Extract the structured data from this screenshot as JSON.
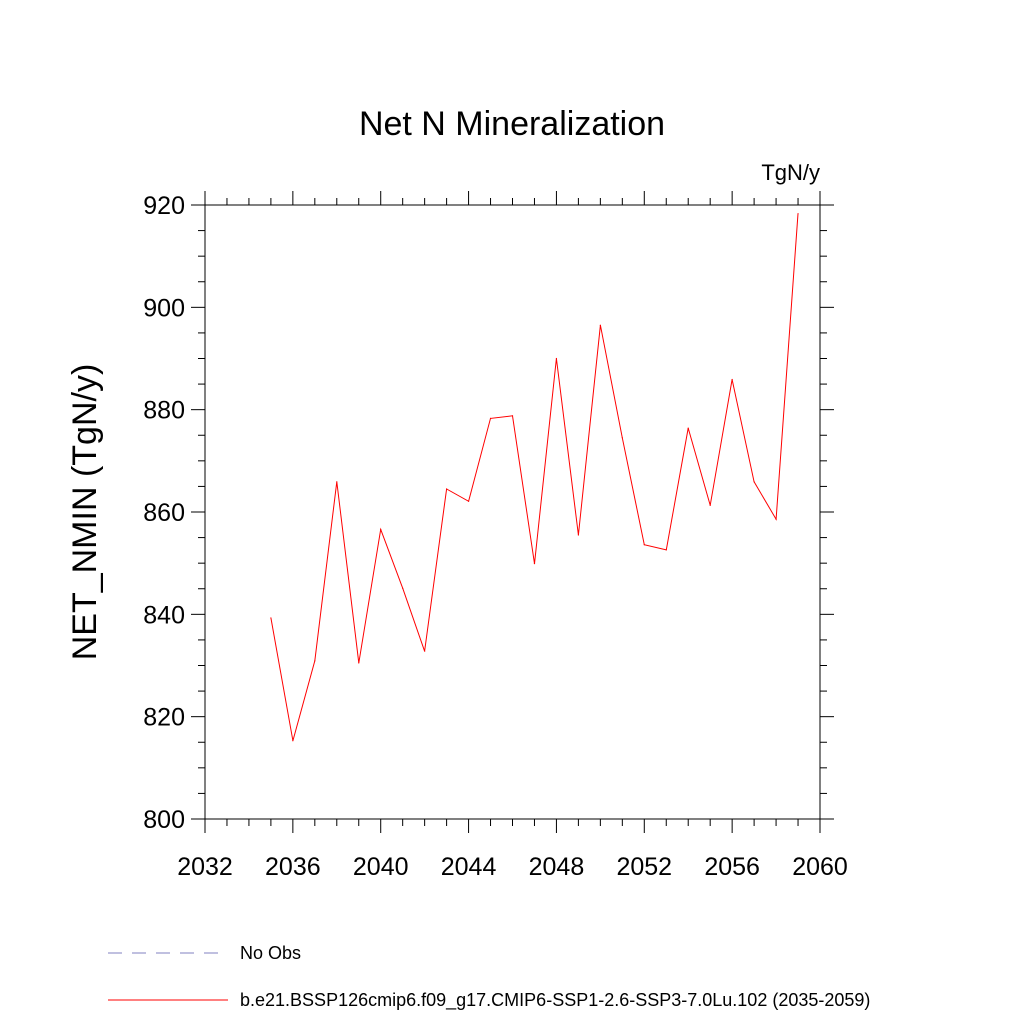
{
  "chart_data": {
    "type": "line",
    "title": "Net N Mineralization",
    "units_label": "TgN/y",
    "ylabel": "NET_NMIN  (TgN/y)",
    "xlabel": "",
    "xlim": [
      2032,
      2060
    ],
    "ylim": [
      800,
      920
    ],
    "x_ticks": [
      2032,
      2036,
      2040,
      2044,
      2048,
      2052,
      2056,
      2060
    ],
    "y_ticks": [
      800,
      820,
      840,
      860,
      880,
      900,
      920
    ],
    "grid": false,
    "legend_placement": "bottom",
    "series": [
      {
        "name": "b.e21.BSSP126cmip6.f09_g17.CMIP6-SSP1-2.6-SSP3-7.0Lu.102 (2035-2059)",
        "color": "#ff0000",
        "style": "solid",
        "x": [
          2035,
          2036,
          2037,
          2038,
          2039,
          2040,
          2041,
          2042,
          2043,
          2044,
          2045,
          2046,
          2047,
          2048,
          2049,
          2050,
          2051,
          2052,
          2053,
          2054,
          2055,
          2056,
          2057,
          2058,
          2059
        ],
        "y": [
          839.3,
          815.3,
          830.9,
          865.9,
          830.5,
          856.6,
          845.1,
          832.8,
          864.5,
          862.1,
          878.3,
          878.8,
          849.9,
          890.0,
          855.5,
          896.5,
          874.5,
          853.6,
          852.6,
          876.4,
          861.3,
          885.9,
          865.9,
          858.6,
          918.3
        ]
      }
    ],
    "legend": [
      {
        "label": "No Obs",
        "color": "#8080c0",
        "style": "dashed"
      },
      {
        "label": "b.e21.BSSP126cmip6.f09_g17.CMIP6-SSP1-2.6-SSP3-7.0Lu.102 (2035-2059)",
        "color": "#ff0000",
        "style": "solid"
      }
    ]
  }
}
